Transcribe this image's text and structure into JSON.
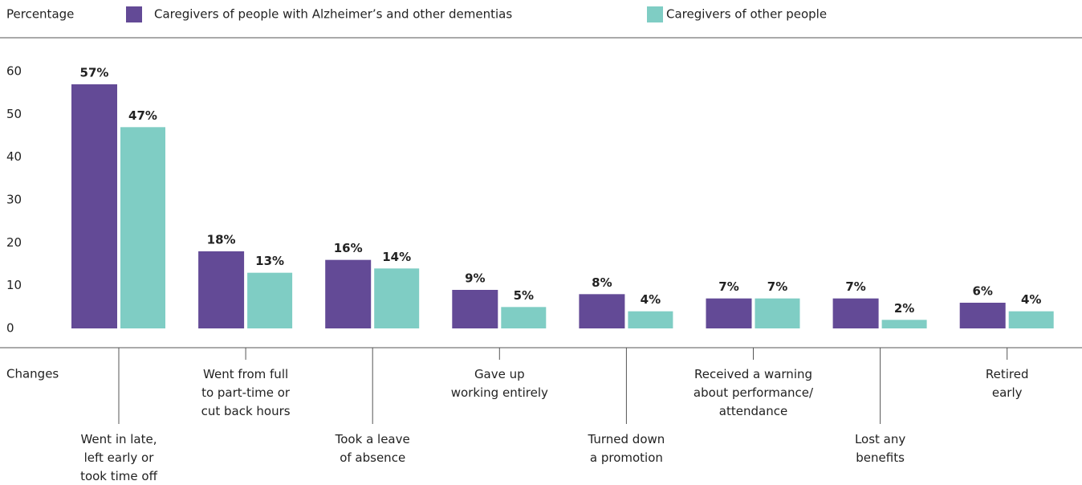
{
  "chart_data": {
    "type": "bar",
    "ylabel": "Percentage",
    "xlabel": "Changes",
    "categories": [
      "Went in late,\nleft early or\ntook time off",
      "Went from full\nto part-time or\ncut back hours",
      "Took a leave\nof absence",
      "Gave up\nworking entirely",
      "Turned down\na promotion",
      "Received a warning\nabout performance/\nattendance",
      "Lost any\nbenefits",
      "Retired\nearly"
    ],
    "series": [
      {
        "name": "Caregivers of people with Alzheimer’s and other dementias",
        "color": "#634a96",
        "values": [
          57,
          18,
          16,
          9,
          8,
          7,
          7,
          6
        ],
        "value_labels": [
          "57%",
          "18%",
          "16%",
          "9%",
          "8%",
          "7%",
          "7%",
          "6%"
        ]
      },
      {
        "name": "Caregivers of other people",
        "color": "#7fcdc4",
        "values": [
          47,
          13,
          14,
          5,
          4,
          7,
          2,
          4
        ],
        "value_labels": [
          "47%",
          "13%",
          "14%",
          "5%",
          "4%",
          "7%",
          "2%",
          "4%"
        ]
      }
    ],
    "ylim": [
      0,
      60
    ],
    "yticks": [
      0,
      10,
      20,
      30,
      40,
      50,
      60
    ]
  }
}
